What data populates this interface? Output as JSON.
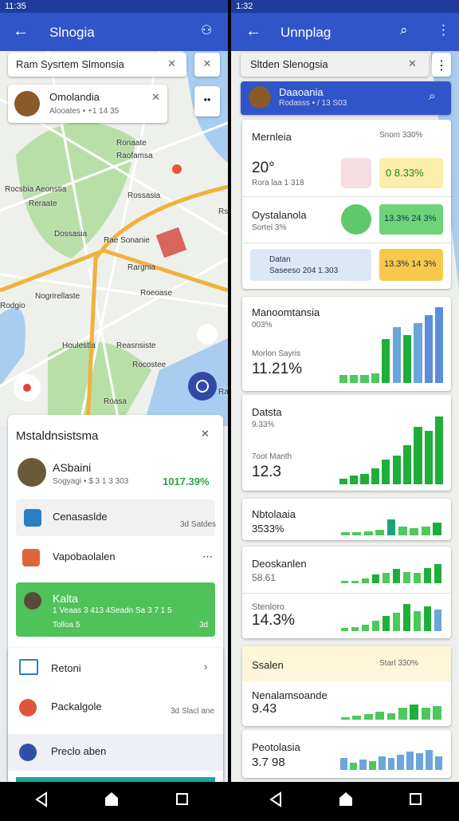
{
  "left": {
    "status_time": "11:35",
    "app_title": "Slnogia",
    "search": "Ram Sysrtem Slmonsia",
    "place_card": {
      "title": "Omolandia",
      "subtitle": "Alooates • +1 14 35"
    },
    "map_labels": [
      "Rocsbia Aeonstia",
      "Ronaate",
      "Raofamsa",
      "Rossasia",
      "Reraate",
      "Dossasia",
      "Rae Sonanie",
      "Rargnia",
      "Rsgasto",
      "Nogrirellaste",
      "Roeoase",
      "Houlestla",
      "Reasnsiste",
      "Rodgio",
      "Rocostee",
      "Roasa",
      "Raeda"
    ],
    "sheet": {
      "title": "Mstaldnsistsma",
      "items": [
        {
          "title": "ASbaini",
          "subtitle": "Sogyagi • $ 3 1 3 303",
          "value": "1017.39%"
        },
        {
          "title": "Cenasaslde",
          "subtitle": "3d Satdes"
        },
        {
          "title": "Vapobaolalen"
        },
        {
          "title": "Kalta",
          "subtitle": "1 Veaas 3 413 4Seadn Sa 3 7 1 5",
          "detail": "Tolloa 5",
          "value": "3d"
        }
      ]
    },
    "menu": [
      {
        "title": "Retoni"
      },
      {
        "title": "Packalgole",
        "subtitle": "3d Slacl ane"
      },
      {
        "title": "Preclo aben"
      }
    ]
  },
  "right": {
    "status_time": "1:32",
    "app_title": "Unnplag",
    "search": "Sltden Slenogsia",
    "header_card": {
      "title": "Daaoania",
      "subtitle": "Rodasss • / 13 S03"
    },
    "summary": {
      "title": "Mernleia",
      "meta": "Snom 330%",
      "rows": [
        {
          "title": "20°",
          "subtitle": "Rora laa 1 318",
          "chip": "0 8.33%"
        },
        {
          "title": "Oystalanola",
          "subtitle": "Sortel 3%",
          "chip": "13.3% 24 3%"
        },
        {
          "title": "Datan",
          "subtitle": "Saseeso 204 1.303",
          "chip": "13.3% 14 3%"
        }
      ]
    },
    "chart_cards": [
      {
        "title": "Manoomtansia",
        "meta": "003%",
        "label": "Morlon Sayris",
        "value": "11.21%"
      },
      {
        "title": "Datsta",
        "meta": "9.33%",
        "label": "7oot Manth",
        "value": "12.3"
      },
      {
        "title": "Nbtolaaia",
        "value": "3533%"
      },
      {
        "title": "Deoskanlen",
        "value": "58.61"
      },
      {
        "title": "Stenloro",
        "value": "14.3%"
      },
      {
        "title": "Ssalen",
        "meta": "Starl 330%"
      },
      {
        "title": "Nenalamsoande",
        "value": "9.43"
      },
      {
        "title": "Peotolasia",
        "value": "3.7 98"
      }
    ],
    "charts": [
      {
        "values": [
          10,
          10,
          10,
          12,
          55,
          70,
          60,
          75,
          85,
          95
        ],
        "colors": [
          "#4cc95a",
          "#4cc95a",
          "#4cc95a",
          "#4cc95a",
          "#1fae3a",
          "#6aa6d9",
          "#1fae3a",
          "#6aa6d9",
          "#5b8ddb",
          "#5b8ddb"
        ]
      },
      {
        "values": [
          8,
          12,
          15,
          22,
          35,
          40,
          55,
          80,
          75,
          95
        ],
        "colors": [
          "#1fae3a",
          "#1fae3a",
          "#1fae3a",
          "#1fae3a",
          "#1fae3a",
          "#1fae3a",
          "#1fae3a",
          "#1fae3a",
          "#1fae3a",
          "#1fae3a"
        ]
      },
      {
        "values": [
          10,
          12,
          14,
          20,
          55,
          30,
          25,
          30,
          45
        ],
        "colors": [
          "#4cc95a",
          "#4cc95a",
          "#4cc95a",
          "#4cc95a",
          "#1fa27a",
          "#4cc95a",
          "#4cc95a",
          "#4cc95a",
          "#1fae3a"
        ]
      },
      {
        "values": [
          10,
          10,
          20,
          35,
          40,
          55,
          45,
          40,
          60,
          75
        ],
        "colors": [
          "#4cc95a",
          "#4cc95a",
          "#4cc95a",
          "#1fae3a",
          "#4cc95a",
          "#1fae3a",
          "#4cc95a",
          "#4cc95a",
          "#1fae3a",
          "#1fae3a"
        ]
      },
      {
        "values": [
          10,
          12,
          18,
          30,
          45,
          55,
          80,
          60,
          75,
          65
        ],
        "colors": [
          "#4cc95a",
          "#4cc95a",
          "#4cc95a",
          "#4cc95a",
          "#1fae3a",
          "#4cc95a",
          "#1fae3a",
          "#4cc95a",
          "#1fae3a",
          "#6aa6d9"
        ]
      },
      {
        "values": [
          10,
          15,
          20,
          30,
          25,
          45,
          55,
          45,
          50
        ],
        "colors": [
          "#4cc95a",
          "#4cc95a",
          "#4cc95a",
          "#4cc95a",
          "#4cc95a",
          "#4cc95a",
          "#1fae3a",
          "#4cc95a",
          "#4cc95a"
        ]
      },
      {
        "values": [
          40,
          25,
          35,
          30,
          45,
          40,
          50,
          60,
          55,
          65,
          45
        ],
        "colors": [
          "#6aa6d9",
          "#4cc95a",
          "#6aa6d9",
          "#4cc95a",
          "#6aa6d9",
          "#6aa6d9",
          "#6aa6d9",
          "#6aa6d9",
          "#6aa6d9",
          "#6aa6d9",
          "#6aa6d9"
        ]
      }
    ]
  }
}
